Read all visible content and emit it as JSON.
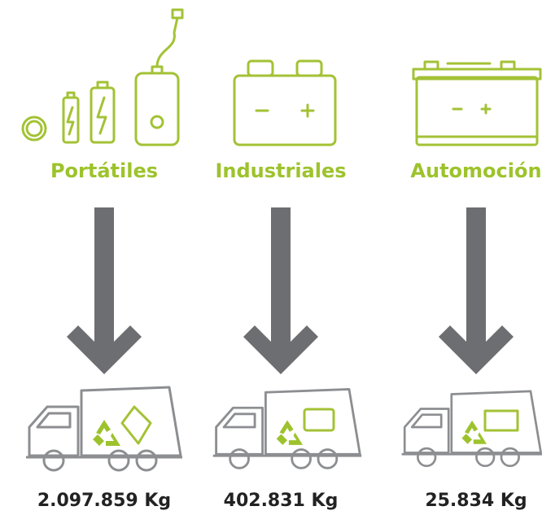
{
  "columns": [
    {
      "label": "Portátiles",
      "amount": "2.097.859 Kg"
    },
    {
      "label": "Industriales",
      "amount": "402.831 Kg"
    },
    {
      "label": "Automoción",
      "amount": "25.834 Kg"
    }
  ]
}
